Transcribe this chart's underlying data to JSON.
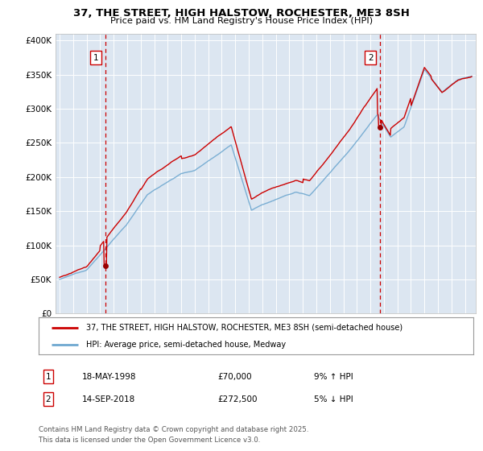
{
  "title_line1": "37, THE STREET, HIGH HALSTOW, ROCHESTER, ME3 8SH",
  "title_line2": "Price paid vs. HM Land Registry's House Price Index (HPI)",
  "background_color": "#dce6f1",
  "plot_bg_color": "#dce6f1",
  "fig_bg_color": "#ffffff",
  "ylim": [
    0,
    410000
  ],
  "yticks": [
    0,
    50000,
    100000,
    150000,
    200000,
    250000,
    300000,
    350000,
    400000
  ],
  "ytick_labels": [
    "£0",
    "£50K",
    "£100K",
    "£150K",
    "£200K",
    "£250K",
    "£300K",
    "£350K",
    "£400K"
  ],
  "sale1_date": 1998.37,
  "sale1_price": 70000,
  "sale1_label": "1",
  "sale2_date": 2018.71,
  "sale2_price": 272500,
  "sale2_label": "2",
  "red_line_color": "#cc0000",
  "blue_line_color": "#6fa8d0",
  "dashed_line_color": "#cc0000",
  "marker_color": "#990000",
  "legend_label1": "37, THE STREET, HIGH HALSTOW, ROCHESTER, ME3 8SH (semi-detached house)",
  "legend_label2": "HPI: Average price, semi-detached house, Medway",
  "note1_num": "1",
  "note1_date": "18-MAY-1998",
  "note1_price": "£70,000",
  "note1_hpi": "9% ↑ HPI",
  "note2_num": "2",
  "note2_date": "14-SEP-2018",
  "note2_price": "£272,500",
  "note2_hpi": "5% ↓ HPI",
  "footer": "Contains HM Land Registry data © Crown copyright and database right 2025.\nThis data is licensed under the Open Government Licence v3.0.",
  "xmin": 1994.7,
  "xmax": 2025.8
}
